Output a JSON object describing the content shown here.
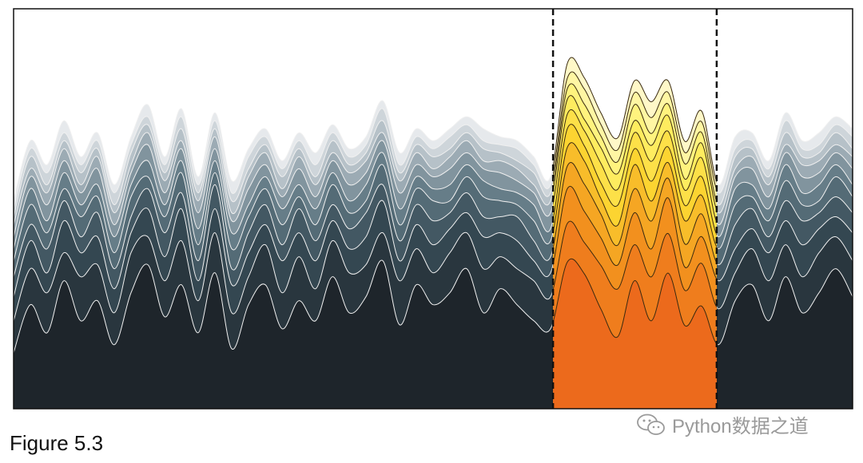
{
  "caption": "Figure 5.3",
  "watermark": "Python数据之道",
  "chart_data": {
    "type": "area",
    "title": "",
    "xlabel": "",
    "ylabel": "",
    "stacked": true,
    "grid": false,
    "highlight_interval": {
      "x_start": 0.643,
      "x_end": 0.838,
      "border": "dashed"
    },
    "x": [
      0,
      0.02,
      0.04,
      0.06,
      0.08,
      0.1,
      0.12,
      0.14,
      0.16,
      0.18,
      0.2,
      0.22,
      0.24,
      0.26,
      0.28,
      0.3,
      0.32,
      0.34,
      0.36,
      0.38,
      0.4,
      0.42,
      0.44,
      0.46,
      0.48,
      0.5,
      0.52,
      0.54,
      0.56,
      0.58,
      0.6,
      0.62,
      0.64,
      0.66,
      0.68,
      0.7,
      0.72,
      0.74,
      0.76,
      0.78,
      0.8,
      0.82,
      0.84,
      0.86,
      0.88,
      0.9,
      0.92,
      0.94,
      0.96,
      0.98,
      1.0
    ],
    "series": [
      {
        "values": [
          0.14,
          0.26,
          0.19,
          0.32,
          0.22,
          0.27,
          0.16,
          0.29,
          0.36,
          0.23,
          0.31,
          0.19,
          0.34,
          0.15,
          0.26,
          0.31,
          0.2,
          0.27,
          0.22,
          0.33,
          0.24,
          0.28,
          0.37,
          0.21,
          0.31,
          0.26,
          0.29,
          0.35,
          0.24,
          0.3,
          0.26,
          0.22,
          0.2,
          0.36,
          0.33,
          0.24,
          0.17,
          0.31,
          0.21,
          0.33,
          0.2,
          0.25,
          0.16,
          0.27,
          0.31,
          0.22,
          0.33,
          0.24,
          0.29,
          0.35,
          0.28
        ]
      },
      {
        "values": [
          0.08,
          0.09,
          0.1,
          0.07,
          0.11,
          0.09,
          0.08,
          0.1,
          0.07,
          0.09,
          0.11,
          0.08,
          0.1,
          0.09,
          0.07,
          0.1,
          0.09,
          0.11,
          0.08,
          0.09,
          0.1,
          0.08,
          0.07,
          0.11,
          0.09,
          0.08,
          0.1,
          0.09,
          0.11,
          0.08,
          0.09,
          0.1,
          0.08,
          0.09,
          0.07,
          0.1,
          0.11,
          0.08,
          0.1,
          0.09,
          0.08,
          0.1,
          0.09,
          0.07,
          0.09,
          0.1,
          0.08,
          0.09,
          0.1,
          0.08,
          0.09
        ]
      },
      {
        "values": [
          0.06,
          0.07,
          0.05,
          0.08,
          0.06,
          0.07,
          0.06,
          0.05,
          0.07,
          0.06,
          0.08,
          0.05,
          0.06,
          0.07,
          0.06,
          0.05,
          0.08,
          0.06,
          0.07,
          0.05,
          0.06,
          0.07,
          0.08,
          0.05,
          0.06,
          0.07,
          0.06,
          0.05,
          0.08,
          0.06,
          0.07,
          0.05,
          0.06,
          0.08,
          0.07,
          0.06,
          0.05,
          0.07,
          0.06,
          0.08,
          0.05,
          0.06,
          0.07,
          0.06,
          0.05,
          0.07,
          0.06,
          0.08,
          0.06,
          0.05,
          0.07
        ]
      },
      {
        "values": [
          0.05,
          0.04,
          0.06,
          0.05,
          0.04,
          0.06,
          0.05,
          0.04,
          0.05,
          0.06,
          0.04,
          0.05,
          0.06,
          0.04,
          0.05,
          0.05,
          0.04,
          0.06,
          0.05,
          0.04,
          0.05,
          0.06,
          0.04,
          0.05,
          0.05,
          0.06,
          0.04,
          0.05,
          0.05,
          0.04,
          0.06,
          0.05,
          0.04,
          0.05,
          0.06,
          0.05,
          0.04,
          0.05,
          0.06,
          0.04,
          0.05,
          0.05,
          0.04,
          0.06,
          0.05,
          0.04,
          0.05,
          0.06,
          0.04,
          0.05,
          0.05
        ]
      },
      {
        "values": [
          0.04,
          0.05,
          0.04,
          0.03,
          0.05,
          0.04,
          0.04,
          0.05,
          0.03,
          0.04,
          0.05,
          0.04,
          0.03,
          0.05,
          0.04,
          0.04,
          0.05,
          0.03,
          0.04,
          0.05,
          0.04,
          0.03,
          0.05,
          0.04,
          0.04,
          0.05,
          0.03,
          0.04,
          0.05,
          0.04,
          0.03,
          0.05,
          0.04,
          0.04,
          0.05,
          0.03,
          0.04,
          0.05,
          0.04,
          0.03,
          0.05,
          0.04,
          0.04,
          0.05,
          0.03,
          0.04,
          0.05,
          0.04,
          0.03,
          0.05,
          0.04
        ]
      },
      {
        "values": [
          0.03,
          0.04,
          0.03,
          0.04,
          0.03,
          0.03,
          0.04,
          0.03,
          0.04,
          0.03,
          0.03,
          0.04,
          0.03,
          0.04,
          0.03,
          0.03,
          0.04,
          0.03,
          0.04,
          0.03,
          0.03,
          0.04,
          0.03,
          0.04,
          0.03,
          0.03,
          0.04,
          0.03,
          0.04,
          0.03,
          0.03,
          0.04,
          0.03,
          0.04,
          0.03,
          0.03,
          0.04,
          0.03,
          0.04,
          0.03,
          0.03,
          0.04,
          0.03,
          0.04,
          0.03,
          0.03,
          0.04,
          0.03,
          0.04,
          0.03,
          0.03
        ]
      },
      {
        "values": [
          0.03,
          0.03,
          0.04,
          0.03,
          0.03,
          0.04,
          0.03,
          0.03,
          0.04,
          0.03,
          0.03,
          0.04,
          0.03,
          0.03,
          0.04,
          0.03,
          0.03,
          0.04,
          0.03,
          0.03,
          0.04,
          0.03,
          0.03,
          0.04,
          0.03,
          0.03,
          0.04,
          0.03,
          0.03,
          0.04,
          0.03,
          0.03,
          0.04,
          0.03,
          0.03,
          0.04,
          0.03,
          0.03,
          0.04,
          0.03,
          0.03,
          0.04,
          0.03,
          0.03,
          0.04,
          0.03,
          0.03,
          0.04,
          0.03,
          0.03,
          0.04
        ]
      },
      {
        "values": [
          0.03,
          0.02,
          0.03,
          0.03,
          0.02,
          0.03,
          0.03,
          0.02,
          0.03,
          0.03,
          0.02,
          0.03,
          0.03,
          0.02,
          0.03,
          0.03,
          0.02,
          0.03,
          0.03,
          0.02,
          0.03,
          0.03,
          0.02,
          0.03,
          0.03,
          0.02,
          0.03,
          0.03,
          0.02,
          0.03,
          0.03,
          0.02,
          0.03,
          0.03,
          0.02,
          0.03,
          0.03,
          0.02,
          0.03,
          0.03,
          0.02,
          0.03,
          0.03,
          0.02,
          0.03,
          0.03,
          0.02,
          0.03,
          0.03,
          0.02,
          0.03
        ]
      },
      {
        "values": [
          0.02,
          0.03,
          0.02,
          0.02,
          0.03,
          0.02,
          0.02,
          0.03,
          0.02,
          0.02,
          0.03,
          0.02,
          0.02,
          0.03,
          0.02,
          0.02,
          0.03,
          0.02,
          0.02,
          0.03,
          0.02,
          0.02,
          0.03,
          0.02,
          0.02,
          0.03,
          0.02,
          0.02,
          0.03,
          0.02,
          0.02,
          0.03,
          0.02,
          0.02,
          0.03,
          0.02,
          0.02,
          0.03,
          0.02,
          0.02,
          0.03,
          0.02,
          0.02,
          0.03,
          0.02,
          0.02,
          0.03,
          0.02,
          0.02,
          0.03,
          0.02
        ]
      },
      {
        "values": [
          0.02,
          0.02,
          0.03,
          0.02,
          0.02,
          0.02,
          0.03,
          0.02,
          0.02,
          0.02,
          0.03,
          0.02,
          0.02,
          0.02,
          0.03,
          0.02,
          0.02,
          0.02,
          0.03,
          0.02,
          0.02,
          0.02,
          0.03,
          0.02,
          0.02,
          0.02,
          0.03,
          0.02,
          0.02,
          0.02,
          0.03,
          0.02,
          0.02,
          0.02,
          0.03,
          0.02,
          0.02,
          0.02,
          0.03,
          0.02,
          0.02,
          0.02,
          0.03,
          0.02,
          0.02,
          0.02,
          0.03,
          0.02,
          0.02,
          0.02,
          0.03
        ]
      },
      {
        "values": [
          0.02,
          0.02,
          0.02,
          0.03,
          0.02,
          0.02,
          0.02,
          0.02,
          0.03,
          0.02,
          0.02,
          0.02,
          0.02,
          0.03,
          0.02,
          0.02,
          0.02,
          0.02,
          0.03,
          0.02,
          0.02,
          0.02,
          0.02,
          0.03,
          0.02,
          0.02,
          0.02,
          0.02,
          0.03,
          0.02,
          0.02,
          0.02,
          0.02,
          0.03,
          0.02,
          0.02,
          0.02,
          0.02,
          0.03,
          0.02,
          0.02,
          0.02,
          0.02,
          0.03,
          0.02,
          0.02,
          0.02,
          0.02,
          0.03,
          0.02,
          0.02
        ]
      }
    ],
    "colors": {
      "outside_bottom": "#1e252b",
      "outside_top": "#e6e9ec",
      "inside_bottom": "#ec6a1c",
      "inside_top": "#fff8c8",
      "outside_stroke": "#f0f0f0",
      "inside_stroke": "#3a2a10",
      "frame": "#111111"
    }
  }
}
